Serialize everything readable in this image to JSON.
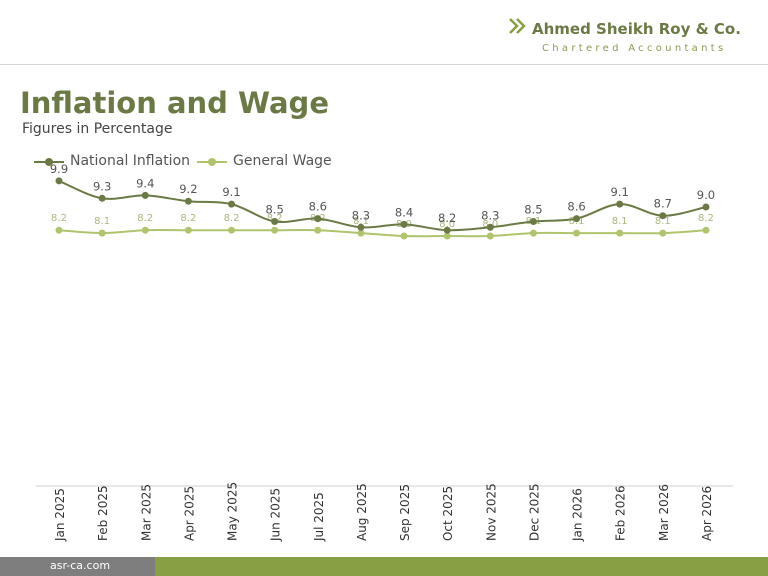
{
  "brand": {
    "name": "Ahmed Sheikh Roy & Co.",
    "tagline": "Chartered Accountants",
    "website": "asr-ca.com"
  },
  "colors": {
    "brand_dark": "#6b7a45",
    "brand_light": "#86a043",
    "series_national": "#6b7a45",
    "series_wage": "#b0c46e"
  },
  "chart_data": {
    "type": "line",
    "title": "Inflation and Wage",
    "subtitle": "Figures in Percentage",
    "categories": [
      "Jan 2025",
      "Feb 2025",
      "Mar 2025",
      "Apr 2025",
      "May 2025",
      "Jun 2025",
      "Jul 2025",
      "Aug 2025",
      "Sep 2025",
      "Oct 2025",
      "Nov 2025",
      "Dec 2025",
      "Jan 2026",
      "Feb 2026",
      "Mar 2026",
      "Apr 2026"
    ],
    "series": [
      {
        "name": "National Inflation",
        "color": "#6b7a45",
        "values": [
          9.9,
          9.3,
          9.4,
          9.2,
          9.1,
          8.5,
          8.6,
          8.3,
          8.4,
          8.2,
          8.3,
          8.5,
          8.6,
          9.1,
          8.7,
          9.0
        ]
      },
      {
        "name": "General Wage",
        "color": "#b0c46e",
        "values": [
          8.2,
          8.1,
          8.2,
          8.2,
          8.2,
          8.2,
          8.2,
          8.1,
          8.0,
          8.0,
          8.0,
          8.1,
          8.1,
          8.1,
          8.1,
          8.2
        ]
      }
    ],
    "legend": "top-left",
    "grid": false
  }
}
